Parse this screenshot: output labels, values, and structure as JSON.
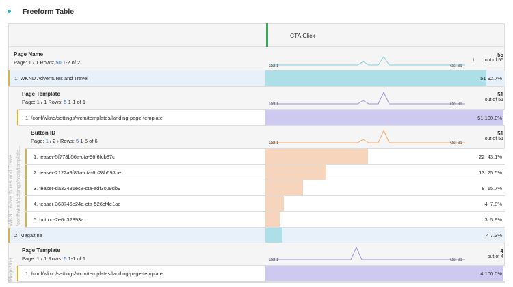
{
  "panel": {
    "title": "Freeform Table"
  },
  "metric": {
    "name": "CTA Click",
    "sort_icon": "arrow-down-icon"
  },
  "colors": {
    "page": "#acdfe8",
    "template": "#cdc9f0",
    "button": "#f7d5bd",
    "accent": "#3aa65b"
  },
  "page_name": {
    "title": "Page Name",
    "page": "Page: 1 / 1",
    "rows_label": "Rows:",
    "rows": "50",
    "range": "1-2 of 2",
    "total": "55",
    "out_of": "out of 55",
    "date_start": "Oct 1",
    "date_end": "Oct 31"
  },
  "rows": [
    {
      "label": "1. WKND Adventures and Travel",
      "value": "51",
      "pct": "92.7%",
      "fraction": 0.927
    },
    {
      "label": "2. Magazine",
      "value": "4",
      "pct": "7.3%",
      "fraction": 0.073
    }
  ],
  "wknd": {
    "side_label": "WKND Adventures and Travel",
    "side_label2": "/conf/wknd/settings/wcm/template...",
    "template": {
      "title": "Page Template",
      "page": "Page: 1 / 1",
      "rows_label": "Rows:",
      "rows": "5",
      "range": "1-1 of 1",
      "total": "51",
      "out_of": "out of 51",
      "date_start": "Oct 1",
      "date_end": "Oct 31",
      "items": [
        {
          "label": "1. /conf/wknd/settings/wcm/templates/landing-page-template",
          "value": "51",
          "pct": "100.0%",
          "fraction": 1.0
        }
      ]
    },
    "button": {
      "title": "Button ID",
      "page_pre": "Page:",
      "page_cur": "1",
      "page_post": "/ 2",
      "next": "›",
      "rows_label": "Rows:",
      "rows": "5",
      "range": "1-5 of 6",
      "total": "51",
      "out_of": "out of 51",
      "date_start": "Oct 1",
      "date_end": "Oct 31",
      "items": [
        {
          "label": "1. teaser-5f778b56a-cta-96f6fcb87c",
          "value": "22",
          "pct": "43.1%",
          "fraction": 0.431
        },
        {
          "label": "2. teaser-2122a9f81a-cta-6b28b693be",
          "value": "13",
          "pct": "25.5%",
          "fraction": 0.255
        },
        {
          "label": "3. teaser-da32481ec8-cta-adf3c09db9",
          "value": "8",
          "pct": "15.7%",
          "fraction": 0.157
        },
        {
          "label": "4. teaser-363746e24a-cta-526cf4e1ac",
          "value": "4",
          "pct": "7.8%",
          "fraction": 0.078
        },
        {
          "label": "5. button-2e6d32893a",
          "value": "3",
          "pct": "5.9%",
          "fraction": 0.059
        }
      ]
    }
  },
  "magazine": {
    "side_label": "Magazine",
    "template": {
      "title": "Page Template",
      "page": "Page: 1 / 1",
      "rows_label": "Rows:",
      "rows": "5",
      "range": "1-1 of 1",
      "total": "4",
      "out_of": "out of 4",
      "date_start": "Oct 1",
      "date_end": "Oct 31",
      "items": [
        {
          "label": "1. /conf/wknd/settings/wcm/templates/landing-page-template",
          "value": "4",
          "pct": "100.0%",
          "fraction": 1.0
        }
      ]
    }
  }
}
